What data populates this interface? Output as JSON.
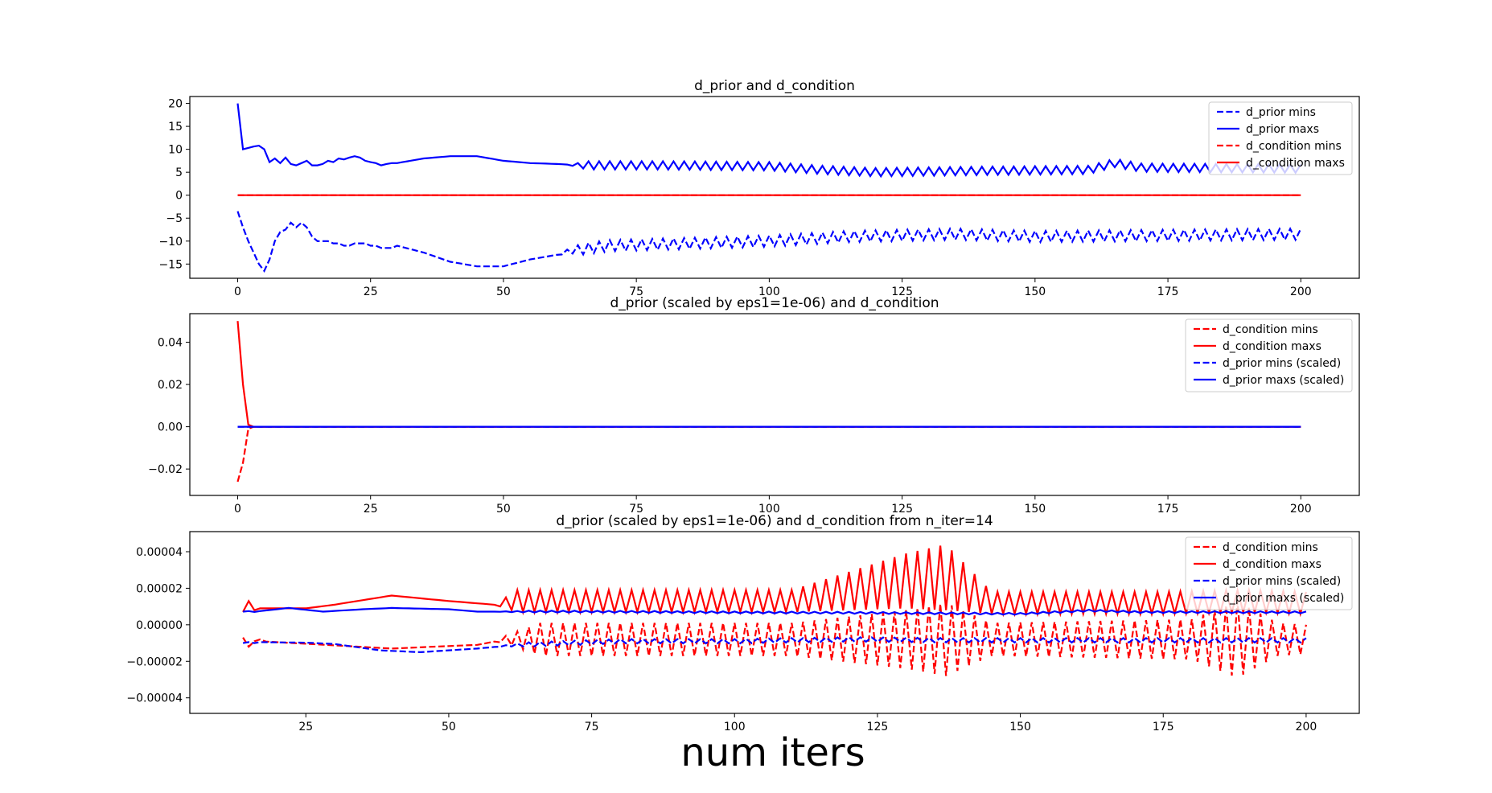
{
  "xlabel": "num iters",
  "colors": {
    "prior": "#0000ff",
    "condition": "#ff0000"
  },
  "chart_data": [
    {
      "type": "line",
      "title": "d_prior and d_condition",
      "xlim": [
        -9,
        211
      ],
      "ylim": [
        -18.1,
        21.5
      ],
      "xticks": [
        0,
        25,
        50,
        75,
        100,
        125,
        150,
        175,
        200
      ],
      "xtick_labels": [
        "0",
        "25",
        "50",
        "75",
        "100",
        "125",
        "150",
        "175",
        "200"
      ],
      "yticks": [
        20,
        15,
        10,
        5,
        0,
        -5,
        -10,
        -15
      ],
      "ytick_labels": [
        "20",
        "15",
        "10",
        "5",
        "0",
        "−5",
        "−10",
        "−15"
      ],
      "legend_loc": "upper right",
      "series": [
        {
          "name": "d_prior mins",
          "color": "#0000ff",
          "dashed": true,
          "gen": "alt",
          "x0": 0,
          "head": [
            -3.5,
            -7,
            -10,
            -12.5,
            -15,
            -16.5,
            -14,
            -10,
            -8,
            -7.5,
            -6,
            -7,
            -6,
            -7,
            -9,
            -10,
            -10,
            -10,
            -10.5,
            -10.5,
            -11,
            -11,
            -10.5,
            -10.5,
            -10.5,
            -11,
            -11,
            -11.5,
            -11.5,
            -11.5
          ],
          "keys": [
            [
              30,
              -11
            ],
            [
              35,
              -12.5
            ],
            [
              40,
              -14.5
            ],
            [
              45,
              -15.5
            ],
            [
              50,
              -15.5
            ],
            [
              55,
              -14
            ],
            [
              60,
              -13
            ],
            [
              63,
              -12
            ],
            [
              70,
              -11
            ],
            [
              100,
              -10
            ],
            [
              115,
              -9
            ],
            [
              135,
              -8.5
            ],
            [
              150,
              -9
            ],
            [
              200,
              -8.5
            ]
          ],
          "amp": [
            [
              60,
              0
            ],
            [
              65,
              1.2
            ],
            [
              200,
              1.2
            ]
          ],
          "end": 200
        },
        {
          "name": "d_prior maxs",
          "color": "#0000ff",
          "dashed": false,
          "gen": "alt",
          "x0": 0,
          "head": [
            20,
            10,
            10.3,
            10.6,
            10.8,
            10,
            7.2,
            8,
            7,
            8.2,
            6.8,
            6.5,
            7,
            7.5,
            6.5,
            6.5,
            6.8,
            7.5,
            7.2,
            8,
            7.8,
            8.2,
            8.5,
            8.2,
            7.5,
            7.2,
            7,
            6.5,
            6.8,
            7
          ],
          "keys": [
            [
              30,
              7
            ],
            [
              35,
              8
            ],
            [
              40,
              8.5
            ],
            [
              45,
              8.5
            ],
            [
              50,
              7.5
            ],
            [
              55,
              7
            ],
            [
              60,
              6.8
            ],
            [
              65,
              6.5
            ],
            [
              80,
              6.5
            ],
            [
              100,
              6.3
            ],
            [
              110,
              5.5
            ],
            [
              120,
              5
            ],
            [
              140,
              5.3
            ],
            [
              160,
              5.5
            ],
            [
              165,
              7
            ],
            [
              170,
              6
            ],
            [
              200,
              5.8
            ]
          ],
          "amp": [
            [
              62,
              0
            ],
            [
              66,
              0.9
            ],
            [
              200,
              0.9
            ]
          ],
          "end": 200
        },
        {
          "name": "d_condition mins",
          "color": "#ff0000",
          "dashed": true,
          "gen": "const",
          "x0": 0,
          "value": 0,
          "end": 200
        },
        {
          "name": "d_condition maxs",
          "color": "#ff0000",
          "dashed": false,
          "gen": "const",
          "x0": 0,
          "value": 0,
          "end": 200
        }
      ]
    },
    {
      "type": "line",
      "title": "d_prior (scaled by eps1=1e-06) and d_condition",
      "xlim": [
        -9,
        211
      ],
      "ylim": [
        -0.0325,
        0.0535
      ],
      "xticks": [
        0,
        25,
        50,
        75,
        100,
        125,
        150,
        175,
        200
      ],
      "xtick_labels": [
        "0",
        "25",
        "50",
        "75",
        "100",
        "125",
        "150",
        "175",
        "200"
      ],
      "yticks": [
        0.04,
        0.02,
        0,
        -0.02
      ],
      "ytick_labels": [
        "0.04",
        "0.02",
        "0.00",
        "−0.02"
      ],
      "legend_loc": "upper right",
      "series": [
        {
          "name": "d_condition mins",
          "color": "#ff0000",
          "dashed": true,
          "gen": "tail",
          "x0": 0,
          "head": [
            -0.026,
            -0.017,
            -0.001,
            0
          ],
          "value": 0,
          "end": 200
        },
        {
          "name": "d_condition maxs",
          "color": "#ff0000",
          "dashed": false,
          "gen": "tail",
          "x0": 0,
          "head": [
            0.05,
            0.02,
            0.001,
            0
          ],
          "value": 0,
          "end": 200
        },
        {
          "name": "d_prior mins (scaled)",
          "color": "#0000ff",
          "dashed": true,
          "gen": "const",
          "x0": 0,
          "value": 0,
          "end": 200
        },
        {
          "name": "d_prior maxs (scaled)",
          "color": "#0000ff",
          "dashed": false,
          "gen": "const",
          "x0": 0,
          "value": 0,
          "end": 200
        }
      ]
    },
    {
      "type": "line",
      "title": "d_prior (scaled by eps1=1e-06) and d_condition from n_iter=14",
      "xlim": [
        4.7,
        209.3
      ],
      "ylim": [
        -4.85e-05,
        5.1e-05
      ],
      "xticks": [
        25,
        50,
        75,
        100,
        125,
        150,
        175,
        200
      ],
      "xtick_labels": [
        "25",
        "50",
        "75",
        "100",
        "125",
        "150",
        "175",
        "200"
      ],
      "yticks": [
        4e-05,
        2e-05,
        0,
        -2e-05,
        -4e-05
      ],
      "ytick_labels": [
        "0.00004",
        "0.00002",
        "0.00000",
        "−0.00002",
        "−0.00004"
      ],
      "legend_loc": "upper right",
      "series": [
        {
          "name": "d_condition mins",
          "color": "#ff0000",
          "dashed": true,
          "gen": "alt",
          "x0": 14,
          "head": [
            -7e-06,
            -1.2e-05,
            -9e-06,
            -8e-06
          ],
          "keys": [
            [
              17,
              -9e-06
            ],
            [
              40,
              -1.3e-05
            ],
            [
              55,
              -1.1e-05
            ],
            [
              60,
              -8e-06
            ],
            [
              200,
              -8e-06
            ]
          ],
          "amp": [
            [
              58,
              0
            ],
            [
              60,
              2e-06
            ],
            [
              66,
              9e-06
            ],
            [
              110,
              9e-06
            ],
            [
              130,
              1.6e-05
            ],
            [
              137,
              2e-05
            ],
            [
              145,
              9e-06
            ],
            [
              180,
              1.1e-05
            ],
            [
              188,
              2.1e-05
            ],
            [
              195,
              9e-06
            ],
            [
              200,
              8e-06
            ]
          ],
          "end": 200
        },
        {
          "name": "d_condition maxs",
          "color": "#ff0000",
          "dashed": false,
          "gen": "alt",
          "x0": 14,
          "head": [
            7e-06,
            1.3e-05,
            8e-06,
            9e-06
          ],
          "keys": [
            [
              17,
              9e-06
            ],
            [
              25,
              9e-06
            ],
            [
              30,
              1.1e-05
            ],
            [
              40,
              1.6e-05
            ],
            [
              50,
              1.3e-05
            ],
            [
              58,
              1.1e-05
            ],
            [
              62,
              1.3e-05
            ],
            [
              110,
              1.3e-05
            ],
            [
              130,
              2.4e-05
            ],
            [
              137,
              2.6e-05
            ],
            [
              145,
              1.2e-05
            ],
            [
              175,
              1.2e-05
            ],
            [
              190,
              1.3e-05
            ],
            [
              200,
              1.2e-05
            ]
          ],
          "amp": [
            [
              58,
              0
            ],
            [
              62,
              6e-06
            ],
            [
              110,
              6e-06
            ],
            [
              130,
              1.5e-05
            ],
            [
              137,
              1.8e-05
            ],
            [
              145,
              6e-06
            ],
            [
              200,
              6e-06
            ]
          ],
          "end": 200
        },
        {
          "name": "d_prior mins (scaled)",
          "color": "#0000ff",
          "dashed": true,
          "gen": "alt",
          "x0": 14,
          "head": [
            -1e-05,
            -9.5e-06,
            -1e-05,
            -9.5e-06
          ],
          "keys": [
            [
              17,
              -9.5e-06
            ],
            [
              25,
              -9.8e-06
            ],
            [
              30,
              -1.05e-05
            ],
            [
              38,
              -1.4e-05
            ],
            [
              45,
              -1.5e-05
            ],
            [
              55,
              -1.3e-05
            ],
            [
              62,
              -1.1e-05
            ],
            [
              80,
              -9e-06
            ],
            [
              100,
              -9e-06
            ],
            [
              120,
              -8e-06
            ],
            [
              140,
              -8.5e-06
            ],
            [
              200,
              -8.5e-06
            ]
          ],
          "amp": [
            [
              58,
              0
            ],
            [
              64,
              1.2e-06
            ],
            [
              200,
              1.2e-06
            ]
          ],
          "end": 200
        },
        {
          "name": "d_prior maxs (scaled)",
          "color": "#0000ff",
          "dashed": false,
          "gen": "alt",
          "x0": 14,
          "head": [
            7.2e-06,
            7.5e-06,
            7e-06,
            7.5e-06
          ],
          "keys": [
            [
              17,
              7.5e-06
            ],
            [
              22,
              9.2e-06
            ],
            [
              28,
              7.2e-06
            ],
            [
              35,
              8.5e-06
            ],
            [
              40,
              9.2e-06
            ],
            [
              50,
              8.5e-06
            ],
            [
              55,
              7.2e-06
            ],
            [
              75,
              7.2e-06
            ],
            [
              100,
              6.8e-06
            ],
            [
              125,
              6.5e-06
            ],
            [
              150,
              6e-06
            ],
            [
              162,
              7.8e-06
            ],
            [
              170,
              7e-06
            ],
            [
              200,
              6.8e-06
            ]
          ],
          "amp": [
            [
              58,
              0
            ],
            [
              64,
              5e-07
            ],
            [
              200,
              5e-07
            ]
          ],
          "end": 200
        }
      ]
    }
  ]
}
